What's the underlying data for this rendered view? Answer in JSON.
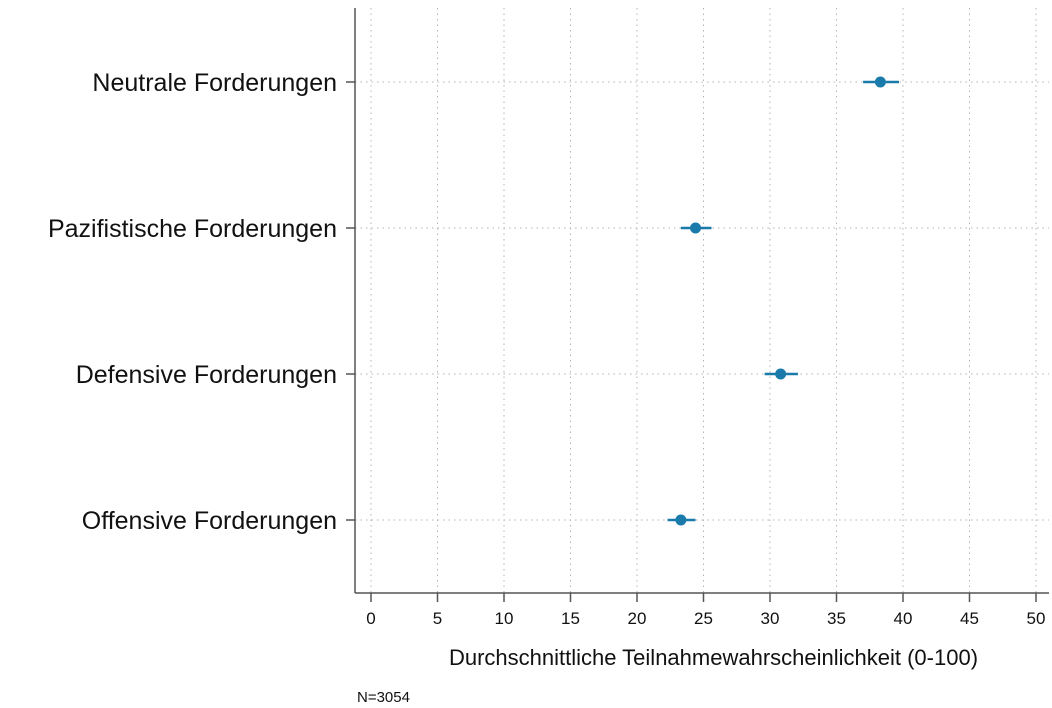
{
  "chart_data": {
    "type": "scatter",
    "subtype": "dot-and-whisker",
    "categories": [
      "Neutrale Forderungen",
      "Pazifistische Forderungen",
      "Defensive Forderungen",
      "Offensive Forderungen"
    ],
    "series": [
      {
        "values": [
          38.3,
          24.4,
          30.8,
          23.3
        ],
        "ci_low": [
          37.0,
          23.3,
          29.6,
          22.3
        ],
        "ci_high": [
          39.7,
          25.6,
          32.1,
          24.4
        ],
        "color": "#1a7bab"
      }
    ],
    "xlabel": "Durchschnittliche Teilnahmewahrscheinlichkeit (0-100)",
    "xticks": [
      0,
      5,
      10,
      15,
      20,
      25,
      30,
      35,
      40,
      45,
      50
    ],
    "xlim": [
      0,
      50
    ],
    "grid": true,
    "note": "N=3054"
  }
}
